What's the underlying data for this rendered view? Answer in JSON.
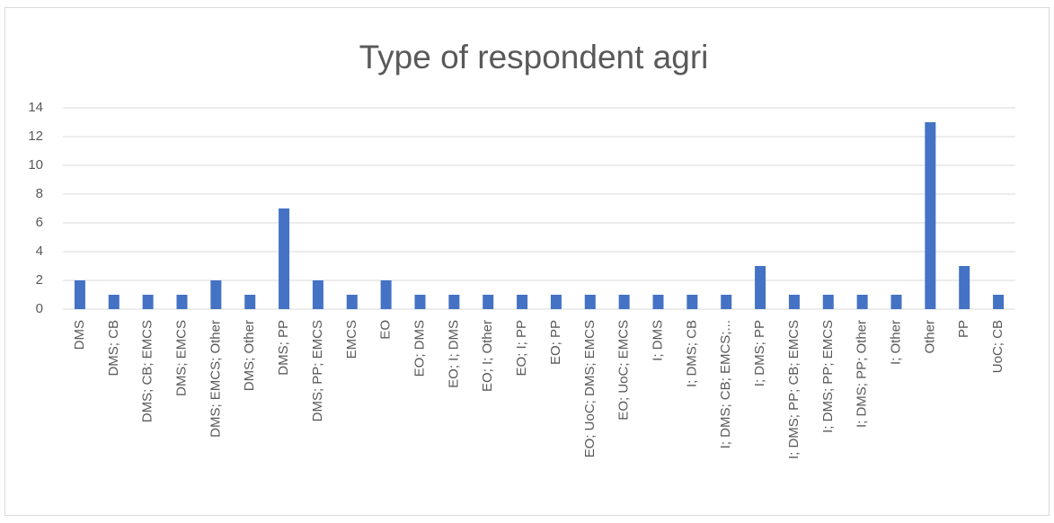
{
  "chart_data": {
    "type": "bar",
    "title": "Type of respondent agri",
    "categories": [
      "DMS",
      "DMS; CB",
      "DMS; CB; EMCS",
      "DMS; EMCS",
      "DMS; EMCS; Other",
      "DMS; Other",
      "DMS; PP",
      "DMS; PP; EMCS",
      "EMCS",
      "EO",
      "EO; DMS",
      "EO; I; DMS",
      "EO; I; Other",
      "EO; I; PP",
      "EO; PP",
      "EO; UoC; DMS; EMCS",
      "EO; UoC; EMCS",
      "I; DMS",
      "I; DMS; CB",
      "I; DMS; CB; EMCS;...",
      "I; DMS; PP",
      "I; DMS; PP; CB; EMCS",
      "I; DMS; PP; EMCS",
      "I; DMS; PP; Other",
      "I; Other",
      "Other",
      "PP",
      "UoC; CB"
    ],
    "values": [
      2,
      1,
      1,
      1,
      2,
      1,
      7,
      2,
      1,
      2,
      1,
      1,
      1,
      1,
      1,
      1,
      1,
      1,
      1,
      1,
      3,
      1,
      1,
      1,
      1,
      13,
      3,
      1
    ],
    "color": "#4472c4",
    "ylim": [
      0,
      14
    ],
    "yticks": [
      0,
      2,
      4,
      6,
      8,
      10,
      12,
      14
    ],
    "grid": true
  }
}
